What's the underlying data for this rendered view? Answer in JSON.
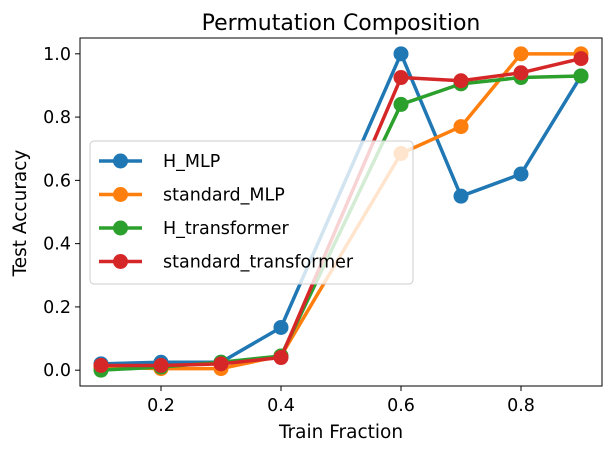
{
  "chart_data": {
    "type": "line",
    "title": "Permutation Composition",
    "xlabel": "Train Fraction",
    "ylabel": "Test Accuracy",
    "xlim": [
      0.065,
      0.935
    ],
    "ylim": [
      -0.05,
      1.05
    ],
    "xticks": [
      0.2,
      0.4,
      0.6,
      0.8
    ],
    "xtick_labels": [
      "0.2",
      "0.4",
      "0.6",
      "0.8"
    ],
    "yticks": [
      0.0,
      0.2,
      0.4,
      0.6,
      0.8,
      1.0
    ],
    "ytick_labels": [
      "0.0",
      "0.2",
      "0.4",
      "0.6",
      "0.8",
      "1.0"
    ],
    "grid": false,
    "legend_position": "center-left",
    "x": [
      0.1,
      0.2,
      0.3,
      0.4,
      0.6,
      0.7,
      0.8,
      0.9
    ],
    "series": [
      {
        "name": "H_MLP",
        "color": "#1f77b4",
        "values": [
          0.02,
          0.025,
          0.025,
          0.135,
          1.0,
          0.55,
          0.62,
          0.93
        ]
      },
      {
        "name": "standard_MLP",
        "color": "#ff7f0e",
        "values": [
          0.01,
          0.005,
          0.005,
          0.045,
          0.685,
          0.77,
          1.0,
          1.0
        ]
      },
      {
        "name": "H_transformer",
        "color": "#2ca02c",
        "values": [
          0.0,
          0.01,
          0.025,
          0.045,
          0.84,
          0.905,
          0.925,
          0.93
        ]
      },
      {
        "name": "standard_transformer",
        "color": "#d62728",
        "values": [
          0.015,
          0.015,
          0.02,
          0.04,
          0.925,
          0.915,
          0.94,
          0.985
        ]
      }
    ]
  }
}
